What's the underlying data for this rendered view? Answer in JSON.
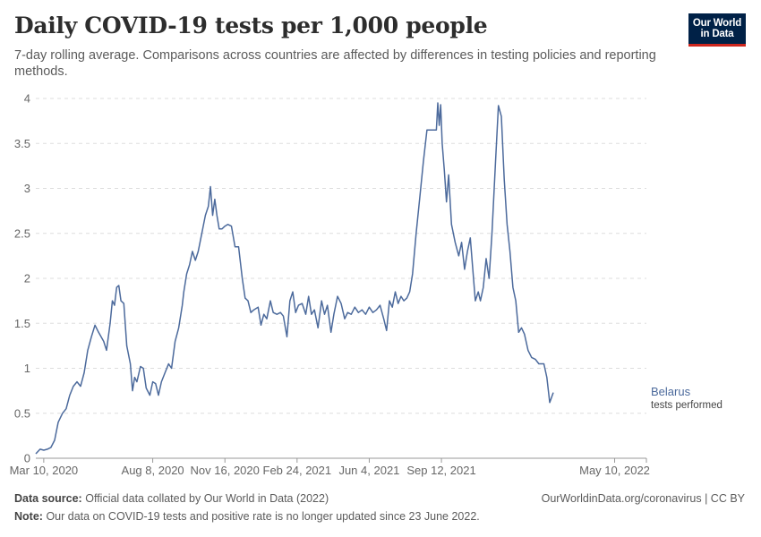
{
  "header": {
    "title": "Daily COVID-19 tests per 1,000 people",
    "subtitle": "7-day rolling average. Comparisons across countries are affected by differences in testing policies and reporting methods."
  },
  "logo": {
    "line1": "Our World",
    "line2": "in Data"
  },
  "footer": {
    "source_label": "Data source:",
    "source_text": "Official data collated by Our World in Data (2022)",
    "link": "OurWorldinData.org/coronavirus | CC BY",
    "note_label": "Note:",
    "note_text": "Our data on COVID-19 tests and positive rate is no longer updated since 23 June 2022."
  },
  "colors": {
    "series": "#4c6a9c",
    "grid": "#dddddd",
    "axis": "#999999",
    "brand": "#002147",
    "brand_accent": "#ce261e"
  },
  "chart_data": {
    "type": "line",
    "title": "Daily COVID-19 tests per 1,000 people",
    "xlabel": "",
    "ylabel": "",
    "ylim": [
      0,
      4
    ],
    "yticks": [
      0,
      0.5,
      1,
      1.5,
      2,
      2.5,
      3,
      3.5,
      4
    ],
    "ytick_labels": [
      "0",
      "0.5",
      "1",
      "1.5",
      "2",
      "2.5",
      "3",
      "3.5",
      "4"
    ],
    "xlim": [
      "2020-02-28",
      "2022-06-23"
    ],
    "xticks": [
      "2020-03-10",
      "2020-08-08",
      "2020-11-16",
      "2021-02-24",
      "2021-06-04",
      "2021-09-12",
      "2022-05-10"
    ],
    "xtick_labels": [
      "Mar 10, 2020",
      "Aug 8, 2020",
      "Nov 16, 2020",
      "Feb 24, 2021",
      "Jun 4, 2021",
      "Sep 12, 2021",
      "May 10, 2022"
    ],
    "grid": true,
    "series": [
      {
        "name": "Belarus",
        "label_sub": "tests performed",
        "points": [
          [
            "2020-02-28",
            0.05
          ],
          [
            "2020-03-05",
            0.1
          ],
          [
            "2020-03-10",
            0.09
          ],
          [
            "2020-03-15",
            0.1
          ],
          [
            "2020-03-20",
            0.12
          ],
          [
            "2020-03-25",
            0.2
          ],
          [
            "2020-03-30",
            0.4
          ],
          [
            "2020-04-05",
            0.5
          ],
          [
            "2020-04-10",
            0.55
          ],
          [
            "2020-04-15",
            0.7
          ],
          [
            "2020-04-20",
            0.8
          ],
          [
            "2020-04-25",
            0.85
          ],
          [
            "2020-04-30",
            0.8
          ],
          [
            "2020-05-05",
            0.95
          ],
          [
            "2020-05-10",
            1.2
          ],
          [
            "2020-05-15",
            1.35
          ],
          [
            "2020-05-20",
            1.48
          ],
          [
            "2020-05-25",
            1.4
          ],
          [
            "2020-06-01",
            1.3
          ],
          [
            "2020-06-05",
            1.2
          ],
          [
            "2020-06-10",
            1.5
          ],
          [
            "2020-06-13",
            1.75
          ],
          [
            "2020-06-16",
            1.7
          ],
          [
            "2020-06-19",
            1.9
          ],
          [
            "2020-06-22",
            1.92
          ],
          [
            "2020-06-25",
            1.75
          ],
          [
            "2020-06-29",
            1.72
          ],
          [
            "2020-07-03",
            1.25
          ],
          [
            "2020-07-08",
            1.05
          ],
          [
            "2020-07-11",
            0.75
          ],
          [
            "2020-07-14",
            0.9
          ],
          [
            "2020-07-17",
            0.85
          ],
          [
            "2020-07-22",
            1.02
          ],
          [
            "2020-07-26",
            1.0
          ],
          [
            "2020-07-30",
            0.78
          ],
          [
            "2020-08-04",
            0.7
          ],
          [
            "2020-08-08",
            0.85
          ],
          [
            "2020-08-12",
            0.83
          ],
          [
            "2020-08-16",
            0.7
          ],
          [
            "2020-08-20",
            0.85
          ],
          [
            "2020-08-25",
            0.95
          ],
          [
            "2020-08-30",
            1.05
          ],
          [
            "2020-09-03",
            1.0
          ],
          [
            "2020-09-08",
            1.3
          ],
          [
            "2020-09-13",
            1.45
          ],
          [
            "2020-09-18",
            1.7
          ],
          [
            "2020-09-20",
            1.85
          ],
          [
            "2020-09-24",
            2.05
          ],
          [
            "2020-09-28",
            2.15
          ],
          [
            "2020-10-02",
            2.3
          ],
          [
            "2020-10-06",
            2.2
          ],
          [
            "2020-10-10",
            2.3
          ],
          [
            "2020-10-15",
            2.5
          ],
          [
            "2020-10-20",
            2.7
          ],
          [
            "2020-10-24",
            2.8
          ],
          [
            "2020-10-27",
            3.02
          ],
          [
            "2020-10-30",
            2.7
          ],
          [
            "2020-11-02",
            2.88
          ],
          [
            "2020-11-05",
            2.7
          ],
          [
            "2020-11-08",
            2.55
          ],
          [
            "2020-11-12",
            2.55
          ],
          [
            "2020-11-16",
            2.58
          ],
          [
            "2020-11-20",
            2.6
          ],
          [
            "2020-11-25",
            2.58
          ],
          [
            "2020-11-30",
            2.35
          ],
          [
            "2020-12-05",
            2.35
          ],
          [
            "2020-12-10",
            2.0
          ],
          [
            "2020-12-14",
            1.78
          ],
          [
            "2020-12-18",
            1.75
          ],
          [
            "2020-12-22",
            1.62
          ],
          [
            "2020-12-26",
            1.65
          ],
          [
            "2021-01-01",
            1.68
          ],
          [
            "2021-01-05",
            1.48
          ],
          [
            "2021-01-09",
            1.6
          ],
          [
            "2021-01-13",
            1.55
          ],
          [
            "2021-01-18",
            1.75
          ],
          [
            "2021-01-22",
            1.62
          ],
          [
            "2021-01-27",
            1.6
          ],
          [
            "2021-02-01",
            1.62
          ],
          [
            "2021-02-05",
            1.58
          ],
          [
            "2021-02-10",
            1.35
          ],
          [
            "2021-02-14",
            1.75
          ],
          [
            "2021-02-18",
            1.85
          ],
          [
            "2021-02-22",
            1.62
          ],
          [
            "2021-02-26",
            1.7
          ],
          [
            "2021-03-03",
            1.72
          ],
          [
            "2021-03-08",
            1.6
          ],
          [
            "2021-03-12",
            1.8
          ],
          [
            "2021-03-16",
            1.6
          ],
          [
            "2021-03-20",
            1.65
          ],
          [
            "2021-03-25",
            1.45
          ],
          [
            "2021-03-30",
            1.75
          ],
          [
            "2021-04-03",
            1.6
          ],
          [
            "2021-04-07",
            1.7
          ],
          [
            "2021-04-12",
            1.4
          ],
          [
            "2021-04-16",
            1.6
          ],
          [
            "2021-04-21",
            1.8
          ],
          [
            "2021-04-26",
            1.72
          ],
          [
            "2021-05-01",
            1.55
          ],
          [
            "2021-05-05",
            1.62
          ],
          [
            "2021-05-10",
            1.6
          ],
          [
            "2021-05-15",
            1.68
          ],
          [
            "2021-05-20",
            1.62
          ],
          [
            "2021-05-25",
            1.65
          ],
          [
            "2021-05-30",
            1.6
          ],
          [
            "2021-06-04",
            1.68
          ],
          [
            "2021-06-09",
            1.62
          ],
          [
            "2021-06-14",
            1.65
          ],
          [
            "2021-06-19",
            1.7
          ],
          [
            "2021-06-24",
            1.55
          ],
          [
            "2021-06-28",
            1.42
          ],
          [
            "2021-07-02",
            1.75
          ],
          [
            "2021-07-06",
            1.68
          ],
          [
            "2021-07-10",
            1.85
          ],
          [
            "2021-07-14",
            1.72
          ],
          [
            "2021-07-18",
            1.8
          ],
          [
            "2021-07-22",
            1.75
          ],
          [
            "2021-07-26",
            1.78
          ],
          [
            "2021-07-30",
            1.85
          ],
          [
            "2021-08-03",
            2.05
          ],
          [
            "2021-08-08",
            2.5
          ],
          [
            "2021-08-13",
            2.9
          ],
          [
            "2021-08-18",
            3.3
          ],
          [
            "2021-08-23",
            3.65
          ],
          [
            "2021-08-28",
            3.65
          ],
          [
            "2021-09-02",
            3.65
          ],
          [
            "2021-09-05",
            3.65
          ],
          [
            "2021-09-07",
            3.95
          ],
          [
            "2021-09-09",
            3.7
          ],
          [
            "2021-09-11",
            3.93
          ],
          [
            "2021-09-13",
            3.5
          ],
          [
            "2021-09-16",
            3.2
          ],
          [
            "2021-09-19",
            2.85
          ],
          [
            "2021-09-22",
            3.15
          ],
          [
            "2021-09-26",
            2.6
          ],
          [
            "2021-10-01",
            2.4
          ],
          [
            "2021-10-06",
            2.25
          ],
          [
            "2021-10-10",
            2.4
          ],
          [
            "2021-10-14",
            2.1
          ],
          [
            "2021-10-18",
            2.3
          ],
          [
            "2021-10-22",
            2.45
          ],
          [
            "2021-10-26",
            2.05
          ],
          [
            "2021-10-29",
            1.75
          ],
          [
            "2021-11-02",
            1.85
          ],
          [
            "2021-11-05",
            1.75
          ],
          [
            "2021-11-09",
            1.9
          ],
          [
            "2021-11-13",
            2.22
          ],
          [
            "2021-11-17",
            2.0
          ],
          [
            "2021-11-21",
            2.5
          ],
          [
            "2021-11-26",
            3.3
          ],
          [
            "2021-11-30",
            3.92
          ],
          [
            "2021-12-04",
            3.8
          ],
          [
            "2021-12-08",
            3.1
          ],
          [
            "2021-12-12",
            2.6
          ],
          [
            "2021-12-16",
            2.3
          ],
          [
            "2021-12-20",
            1.9
          ],
          [
            "2021-12-24",
            1.75
          ],
          [
            "2021-12-28",
            1.4
          ],
          [
            "2022-01-01",
            1.45
          ],
          [
            "2022-01-05",
            1.38
          ],
          [
            "2022-01-10",
            1.2
          ],
          [
            "2022-01-15",
            1.12
          ],
          [
            "2022-01-20",
            1.1
          ],
          [
            "2022-01-25",
            1.05
          ],
          [
            "2022-02-01",
            1.05
          ],
          [
            "2022-02-05",
            0.9
          ],
          [
            "2022-02-09",
            0.62
          ],
          [
            "2022-02-14",
            0.73
          ]
        ]
      }
    ]
  }
}
